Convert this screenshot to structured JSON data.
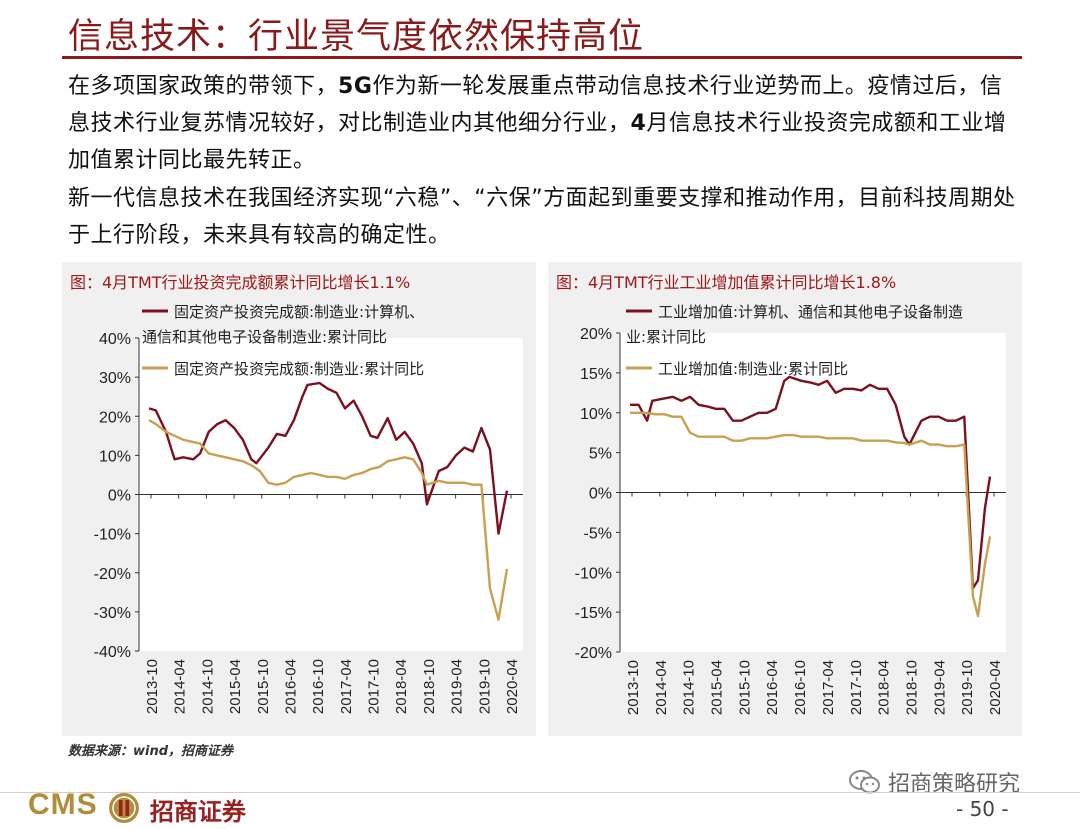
{
  "header": {
    "title": "信息技术：行业景气度依然保持高位"
  },
  "body": {
    "para1": {
      "a": "在多项国家政策的带领下，",
      "b": "5G",
      "c": "作为新一轮发展重点带动信息技术行业逆势而上。疫情过后，信息技术行业复苏情况较好，对比制造业内其他细分行业，",
      "d": "4",
      "e": "月信息技术行业投资完成额和工业增加值累计同比最先转正。"
    },
    "para2": "新一代信息技术在我国经济实现“六稳”、“六保”方面起到重要支撑和推动作用，目前科技周期处于上行阶段，未来具有较高的确定性。"
  },
  "colors": {
    "title": "#8a1a1a",
    "series_dark": "#7b1020",
    "series_gold": "#c8a050"
  },
  "chart_data": [
    {
      "type": "line",
      "title": "图：4月TMT行业投资完成额累计同比增长1.1%",
      "x_labels": [
        "2013-10",
        "2014-04",
        "2014-10",
        "2015-04",
        "2015-10",
        "2016-04",
        "2016-10",
        "2017-04",
        "2017-10",
        "2018-04",
        "2018-10",
        "2019-04",
        "2019-10",
        "2020-04"
      ],
      "ylim": [
        -40,
        40
      ],
      "yticks": [
        "40%",
        "30%",
        "20%",
        "10%",
        "0%",
        "-10%",
        "-20%",
        "-30%",
        "-40%"
      ],
      "series": [
        {
          "name": "固定资产投资完成额:制造业:计算机、通信和其他电子设备制造业:累计同比",
          "color": "#7b1020",
          "points": [
            [
              0,
              22
            ],
            [
              0.4,
              21.5
            ],
            [
              1,
              16
            ],
            [
              1.5,
              9
            ],
            [
              2,
              9.5
            ],
            [
              2.6,
              9
            ],
            [
              3,
              10.5
            ],
            [
              3.5,
              16
            ],
            [
              4,
              18
            ],
            [
              4.5,
              19
            ],
            [
              5,
              17
            ],
            [
              5.5,
              14
            ],
            [
              6,
              9
            ],
            [
              6.3,
              8
            ],
            [
              7,
              12
            ],
            [
              7.5,
              15.5
            ],
            [
              8,
              15
            ],
            [
              8.5,
              19
            ],
            [
              9,
              25
            ],
            [
              9.3,
              28
            ],
            [
              10,
              28.5
            ],
            [
              10.5,
              27
            ],
            [
              11,
              26
            ],
            [
              11.5,
              22
            ],
            [
              12,
              24
            ],
            [
              12.5,
              20
            ],
            [
              13,
              15
            ],
            [
              13.4,
              14.5
            ],
            [
              14,
              19.5
            ],
            [
              14.5,
              14
            ],
            [
              15,
              16
            ],
            [
              15.5,
              13
            ],
            [
              16,
              8
            ],
            [
              16.3,
              -2.5
            ],
            [
              17,
              6
            ],
            [
              17.5,
              7
            ],
            [
              18,
              10
            ],
            [
              18.5,
              12
            ],
            [
              19,
              11
            ],
            [
              19.5,
              17
            ],
            [
              20,
              11.5
            ],
            [
              20.5,
              -10
            ],
            [
              21,
              1
            ]
          ]
        },
        {
          "name": "固定资产投资完成额:制造业:累计同比",
          "color": "#c8a050",
          "points": [
            [
              0,
              19
            ],
            [
              0.4,
              18
            ],
            [
              1,
              16
            ],
            [
              1.5,
              15
            ],
            [
              2,
              14
            ],
            [
              2.5,
              13.5
            ],
            [
              3,
              13
            ],
            [
              3.5,
              10.5
            ],
            [
              4,
              10
            ],
            [
              4.5,
              9.5
            ],
            [
              5,
              9
            ],
            [
              5.5,
              8.5
            ],
            [
              6,
              7.5
            ],
            [
              6.5,
              6
            ],
            [
              7,
              3
            ],
            [
              7.5,
              2.5
            ],
            [
              8,
              3
            ],
            [
              8.5,
              4.5
            ],
            [
              9,
              5
            ],
            [
              9.5,
              5.5
            ],
            [
              10,
              5
            ],
            [
              10.5,
              4.5
            ],
            [
              11,
              4.5
            ],
            [
              11.5,
              4
            ],
            [
              12,
              5
            ],
            [
              12.5,
              5.5
            ],
            [
              13,
              6.5
            ],
            [
              13.5,
              7
            ],
            [
              14,
              8.5
            ],
            [
              14.5,
              9
            ],
            [
              15,
              9.5
            ],
            [
              15.5,
              9
            ],
            [
              16,
              5.5
            ],
            [
              16.3,
              2.5
            ],
            [
              17,
              3.5
            ],
            [
              17.5,
              3
            ],
            [
              18,
              3
            ],
            [
              18.5,
              3
            ],
            [
              19,
              2.5
            ],
            [
              19.5,
              2.5
            ],
            [
              20,
              -24
            ],
            [
              20.5,
              -32
            ],
            [
              21,
              -19
            ]
          ]
        }
      ]
    },
    {
      "type": "line",
      "title": "图：4月TMT行业工业增加值累计同比增长1.8%",
      "x_labels": [
        "2013-10",
        "2014-04",
        "2014-10",
        "2015-04",
        "2015-10",
        "2016-04",
        "2016-10",
        "2017-04",
        "2017-10",
        "2018-04",
        "2018-10",
        "2019-04",
        "2019-10",
        "2020-04"
      ],
      "ylim": [
        -20,
        20
      ],
      "yticks": [
        "20%",
        "15%",
        "10%",
        "5%",
        "0%",
        "-5%",
        "-10%",
        "-15%",
        "-20%"
      ],
      "series": [
        {
          "name": "工业增加值:计算机、通信和其他电子设备制造业:累计同比",
          "color": "#7b1020",
          "points": [
            [
              0,
              11
            ],
            [
              0.5,
              11
            ],
            [
              1,
              9
            ],
            [
              1.3,
              11.5
            ],
            [
              2,
              11.8
            ],
            [
              2.5,
              12
            ],
            [
              3,
              11.5
            ],
            [
              3.5,
              12
            ],
            [
              4,
              11
            ],
            [
              4.5,
              10.8
            ],
            [
              5,
              10.5
            ],
            [
              5.5,
              10.5
            ],
            [
              6,
              9
            ],
            [
              6.5,
              9
            ],
            [
              7,
              9.5
            ],
            [
              7.5,
              10
            ],
            [
              8,
              10
            ],
            [
              8.5,
              10.5
            ],
            [
              9,
              14
            ],
            [
              9.3,
              14.5
            ],
            [
              10,
              14
            ],
            [
              10.5,
              13.8
            ],
            [
              11,
              13.5
            ],
            [
              11.5,
              14
            ],
            [
              12,
              12.5
            ],
            [
              12.5,
              13
            ],
            [
              13,
              13
            ],
            [
              13.5,
              12.8
            ],
            [
              14,
              13.5
            ],
            [
              14.5,
              13
            ],
            [
              15,
              13
            ],
            [
              15.5,
              11
            ],
            [
              16,
              7
            ],
            [
              16.3,
              6
            ],
            [
              17,
              9
            ],
            [
              17.5,
              9.5
            ],
            [
              18,
              9.5
            ],
            [
              18.5,
              9
            ],
            [
              19,
              9
            ],
            [
              19.5,
              9.5
            ],
            [
              20,
              -12
            ],
            [
              20.3,
              -11
            ],
            [
              20.7,
              -2
            ],
            [
              21,
              2
            ]
          ]
        },
        {
          "name": "工业增加值:制造业:累计同比",
          "color": "#c8a050",
          "points": [
            [
              0,
              10
            ],
            [
              0.5,
              10
            ],
            [
              1,
              10
            ],
            [
              1.5,
              9.8
            ],
            [
              2,
              9.8
            ],
            [
              2.5,
              9.5
            ],
            [
              3,
              9.5
            ],
            [
              3.5,
              7.5
            ],
            [
              4,
              7
            ],
            [
              4.5,
              7
            ],
            [
              5,
              7
            ],
            [
              5.5,
              7
            ],
            [
              6,
              6.5
            ],
            [
              6.5,
              6.5
            ],
            [
              7,
              6.8
            ],
            [
              7.5,
              6.8
            ],
            [
              8,
              6.8
            ],
            [
              8.5,
              7
            ],
            [
              9,
              7.2
            ],
            [
              9.5,
              7.2
            ],
            [
              10,
              7
            ],
            [
              10.5,
              7
            ],
            [
              11,
              7
            ],
            [
              11.5,
              6.8
            ],
            [
              12,
              6.8
            ],
            [
              12.5,
              6.8
            ],
            [
              13,
              6.8
            ],
            [
              13.5,
              6.5
            ],
            [
              14,
              6.5
            ],
            [
              14.5,
              6.5
            ],
            [
              15,
              6.5
            ],
            [
              15.5,
              6.3
            ],
            [
              16,
              6.2
            ],
            [
              16.3,
              6
            ],
            [
              17,
              6.5
            ],
            [
              17.5,
              6
            ],
            [
              18,
              6
            ],
            [
              18.5,
              5.8
            ],
            [
              19,
              5.8
            ],
            [
              19.5,
              6
            ],
            [
              20,
              -13
            ],
            [
              20.3,
              -15.5
            ],
            [
              20.7,
              -9
            ],
            [
              21,
              -5.5
            ]
          ]
        }
      ]
    }
  ],
  "source": "数据来源：wind，招商证券",
  "footer": {
    "logo_latin": "CMS",
    "logo_cn": "招商证券",
    "wechat": "招商策略研究",
    "page": "- 50 -"
  }
}
